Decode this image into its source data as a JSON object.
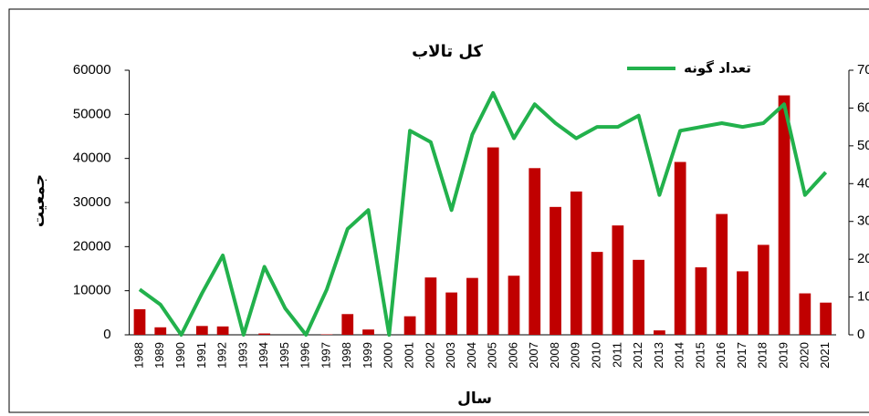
{
  "chart_data": {
    "type": "bar",
    "title": "کل تالاب",
    "x_label": "سال",
    "y_label": "جمعیت",
    "categories": [
      "1988",
      "1989",
      "1990",
      "1991",
      "1992",
      "1993",
      "1994",
      "1995",
      "1996",
      "1997",
      "1998",
      "1999",
      "2000",
      "2001",
      "2002",
      "2003",
      "2004",
      "2005",
      "2006",
      "2007",
      "2008",
      "2009",
      "2010",
      "2011",
      "2012",
      "2013",
      "2014",
      "2015",
      "2016",
      "2017",
      "2018",
      "2019",
      "2020",
      "2021"
    ],
    "series": [
      {
        "type": "bar",
        "color": "#c00000",
        "values": [
          5800,
          1700,
          0,
          2000,
          1900,
          0,
          300,
          0,
          0,
          100,
          4700,
          1200,
          0,
          4200,
          13000,
          9600,
          12900,
          42500,
          13400,
          37800,
          29000,
          32500,
          18800,
          24800,
          17000,
          1000,
          39200,
          15300,
          27400,
          14400,
          20400,
          54300,
          9400,
          7300
        ]
      },
      {
        "type": "line",
        "name": "تعداد گونه",
        "color": "#22b14c",
        "axis": "y2",
        "values": [
          12,
          8,
          0,
          11,
          21,
          0,
          18,
          7,
          0,
          12,
          28,
          33,
          0,
          54,
          51,
          33,
          53,
          64,
          52,
          61,
          56,
          52,
          55,
          55,
          58,
          37,
          54,
          55,
          56,
          55,
          56,
          61,
          37,
          43
        ]
      }
    ],
    "ylim": [
      0,
      60000
    ],
    "yticks": [
      0,
      10000,
      20000,
      30000,
      40000,
      50000,
      60000
    ],
    "y2lim": [
      0,
      70
    ],
    "y2ticks": [
      0,
      10,
      20,
      30,
      40,
      50,
      60,
      70
    ],
    "legend": "top-right"
  }
}
